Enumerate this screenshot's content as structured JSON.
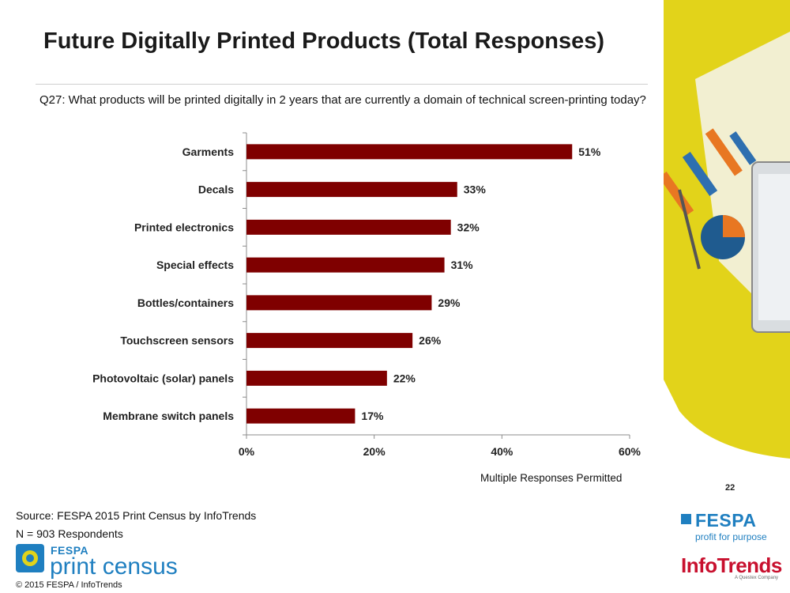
{
  "slide": {
    "title": "Future Digitally Printed Products (Total Responses)",
    "question": "Q27: What products will be printed digitally in 2 years that are currently a domain of technical screen-printing today?",
    "note": "Multiple Responses Permitted",
    "page_number": "22",
    "source": "Source: FESPA 2015 Print Census by InfoTrends",
    "respondents": "N = 903 Respondents",
    "copyright": "© 2015 FESPA  / InfoTrends"
  },
  "logos": {
    "census_brand": "FESPA",
    "census_word": "print census",
    "fespa_word": "FESPA",
    "fespa_tagline": "profit for purpose",
    "infotrends_word": "InfoTrends",
    "infotrends_tagline": "A Questex Company"
  },
  "colors": {
    "bar": "#7f0000",
    "deco_yellow": "#e2d31a"
  },
  "chart_data": {
    "type": "bar",
    "orientation": "horizontal",
    "categories": [
      "Garments",
      "Decals",
      "Printed electronics",
      "Special effects",
      "Bottles/containers",
      "Touchscreen sensors",
      "Photovoltaic (solar) panels",
      "Membrane switch panels"
    ],
    "values": [
      51,
      33,
      32,
      31,
      29,
      26,
      22,
      17
    ],
    "value_labels": [
      "51%",
      "33%",
      "32%",
      "31%",
      "29%",
      "26%",
      "22%",
      "17%"
    ],
    "xlim": [
      0,
      60
    ],
    "xticks": [
      0,
      20,
      40,
      60
    ],
    "xtick_labels": [
      "0%",
      "20%",
      "40%",
      "60%"
    ],
    "grid": false
  }
}
